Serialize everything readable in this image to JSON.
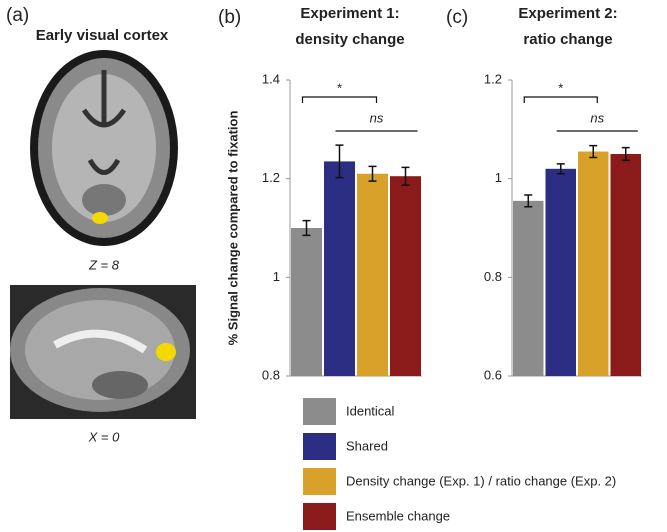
{
  "panel_a": {
    "label": "(a)",
    "title": "Early visual cortex",
    "axial_caption": "Z = 8",
    "sagittal_caption": "X = 0"
  },
  "chart_data": [
    {
      "type": "bar",
      "panel": "(b)",
      "title": [
        "Experiment 1:",
        "density change"
      ],
      "ylabel": "% Signal change compared to fixation",
      "ylim": [
        0.8,
        1.4
      ],
      "yticks": [
        0.8,
        1,
        1.2,
        1.4
      ],
      "annotations": [
        "*",
        "ns"
      ],
      "series": [
        {
          "name": "Identical",
          "color": "#8c8c8c",
          "values": [
            1.1
          ],
          "errors": [
            0.015
          ]
        },
        {
          "name": "Shared",
          "color": "#2b2e83",
          "values": [
            1.235
          ],
          "errors": [
            0.033
          ]
        },
        {
          "name": "Density change (Exp. 1) / ratio change (Exp. 2)",
          "color": "#d8a22a",
          "values": [
            1.21
          ],
          "errors": [
            0.015
          ]
        },
        {
          "name": "Ensemble change",
          "color": "#8b1a1a",
          "values": [
            1.205
          ],
          "errors": [
            0.018
          ]
        }
      ]
    },
    {
      "type": "bar",
      "panel": "(c)",
      "title": [
        "Experiment 2:",
        "ratio change"
      ],
      "ylim": [
        0.6,
        1.2
      ],
      "yticks": [
        0.6,
        0.8,
        1,
        1.2
      ],
      "annotations": [
        "*",
        "ns"
      ],
      "series": [
        {
          "color": "#8c8c8c",
          "values": [
            0.955
          ],
          "errors": [
            0.012
          ]
        },
        {
          "color": "#2b2e83",
          "values": [
            1.02
          ],
          "errors": [
            0.01
          ]
        },
        {
          "color": "#d8a22a",
          "values": [
            1.055
          ],
          "errors": [
            0.012
          ]
        },
        {
          "color": "#8b1a1a",
          "values": [
            1.05
          ],
          "errors": [
            0.013
          ]
        }
      ]
    }
  ]
}
